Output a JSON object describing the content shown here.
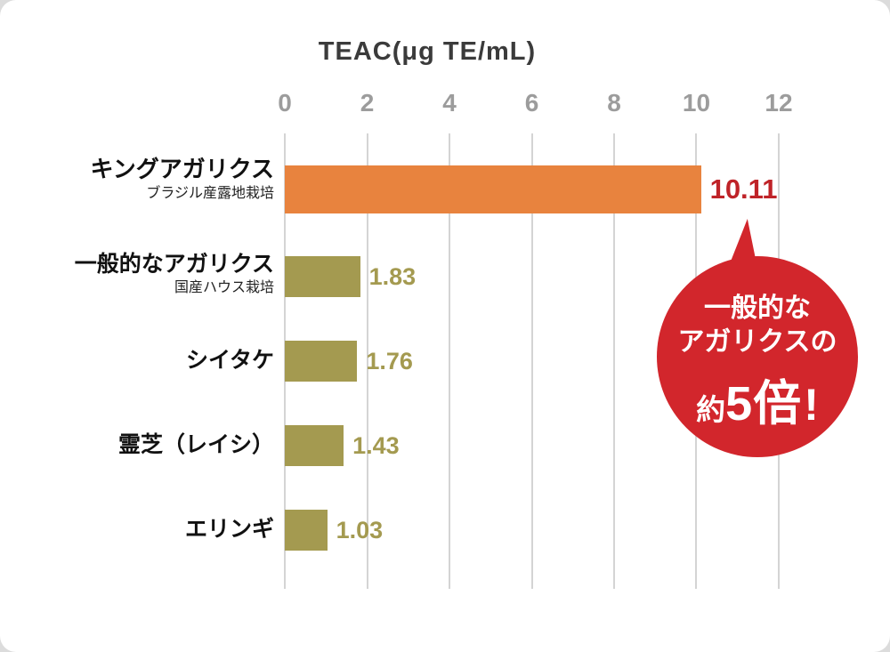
{
  "chart_data": {
    "type": "bar",
    "orientation": "horizontal",
    "title": "TEAC(μg TE/mL)",
    "categories": [
      "キングアガリクス",
      "一般的なアガリクス",
      "シイタケ",
      "霊芝（レイシ）",
      "エリンギ"
    ],
    "sublabels": [
      "ブラジル産露地栽培",
      "国産ハウス栽培",
      "",
      "",
      ""
    ],
    "values": [
      10.11,
      1.83,
      1.76,
      1.43,
      1.03
    ],
    "value_labels": [
      "10.11",
      "1.83",
      "1.76",
      "1.43",
      "1.03"
    ],
    "xlim": [
      0,
      12
    ],
    "x_tick_labels": [
      "0",
      "2",
      "4",
      "6",
      "8",
      "10",
      "12"
    ],
    "grid": true,
    "legend": "none",
    "bar_colors": [
      "#e8833e",
      "#a49a50",
      "#a49a50",
      "#a49a50",
      "#a49a50"
    ],
    "value_colors": [
      "#bf2328",
      "#a49a50",
      "#a49a50",
      "#a49a50",
      "#a49a50"
    ]
  },
  "badge": {
    "line1": "一般的な",
    "line2": "アガリクスの",
    "prefix": "約",
    "big": "5倍",
    "bang": "!",
    "color": "#d2262c"
  },
  "colors": {
    "highlight_bar": "#e8833e",
    "normal_bar": "#a49a50",
    "highlight_value": "#bf2328",
    "badge_red": "#d2262c",
    "tick_gray": "#9c9c9c",
    "gridline": "#d4d4d4",
    "background": "#ffffff"
  }
}
